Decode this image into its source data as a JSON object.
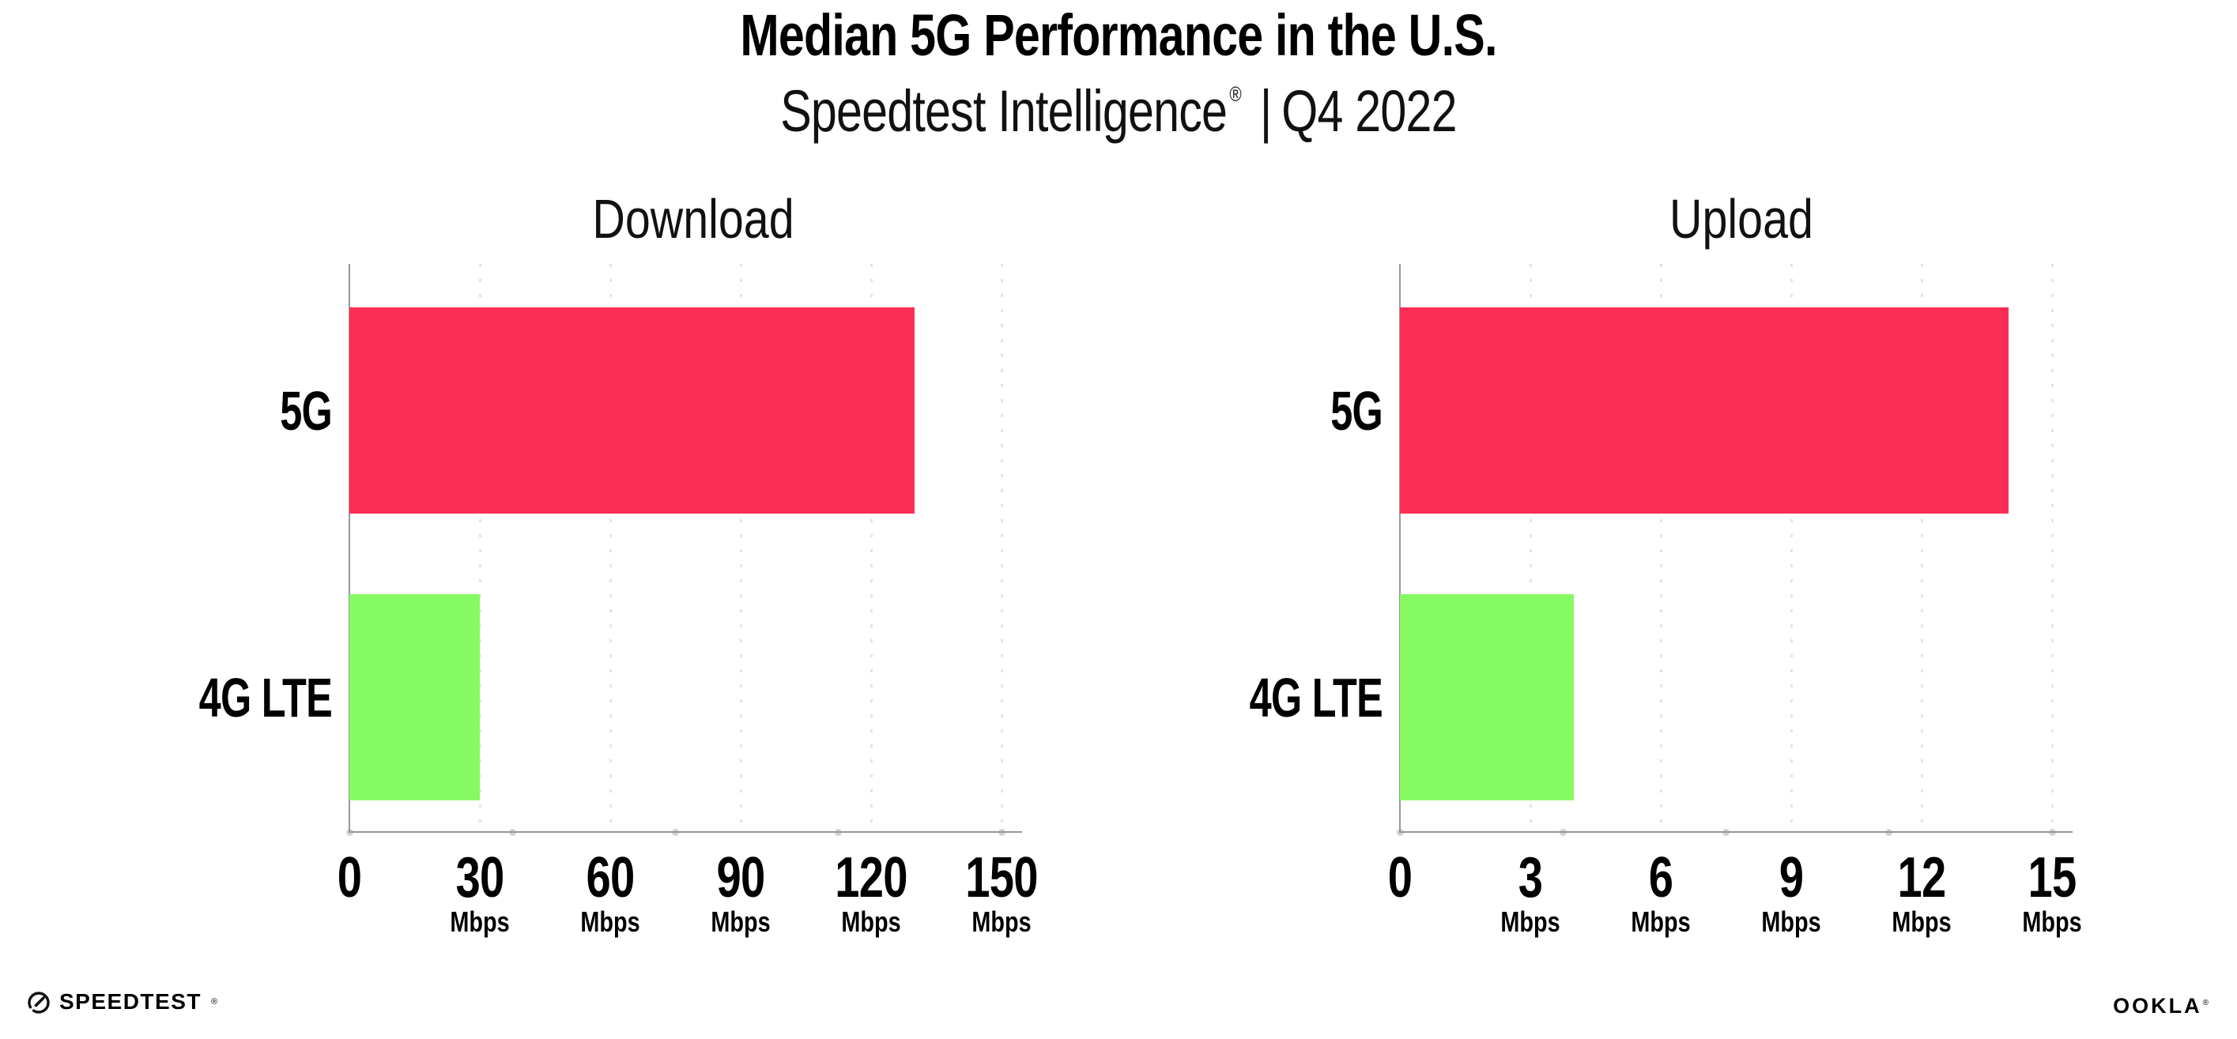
{
  "header": {
    "title": "Median 5G Performance in the U.S.",
    "subtitle": {
      "brand": "Speedtest Intelligence",
      "registered": "®",
      "separator": "|",
      "period": "Q4 2022"
    }
  },
  "chart_data": [
    {
      "type": "bar",
      "orientation": "horizontal",
      "title": "Download",
      "unit": "Mbps",
      "categories": [
        "5G",
        "4G LTE"
      ],
      "values": [
        130,
        30
      ],
      "xlim": [
        0,
        150
      ],
      "xticks": [
        0,
        30,
        60,
        90,
        120,
        150
      ],
      "bar_colors": [
        "#FD2E55",
        "#86FA63"
      ],
      "grid": "dotted-vertical-at-ticks",
      "legend": "none"
    },
    {
      "type": "bar",
      "orientation": "horizontal",
      "title": "Upload",
      "unit": "Mbps",
      "categories": [
        "5G",
        "4G LTE"
      ],
      "values": [
        14,
        4
      ],
      "xlim": [
        0,
        15
      ],
      "xticks": [
        0,
        3,
        6,
        9,
        12,
        15
      ],
      "bar_colors": [
        "#FD2E55",
        "#86FA63"
      ],
      "grid": "dotted-vertical-at-ticks",
      "legend": "none"
    }
  ],
  "footer": {
    "speedtest_logo_text": "SPEEDTEST",
    "speedtest_mark": "®",
    "ookla_logo_text": "OOKLA",
    "ookla_mark": "®"
  }
}
